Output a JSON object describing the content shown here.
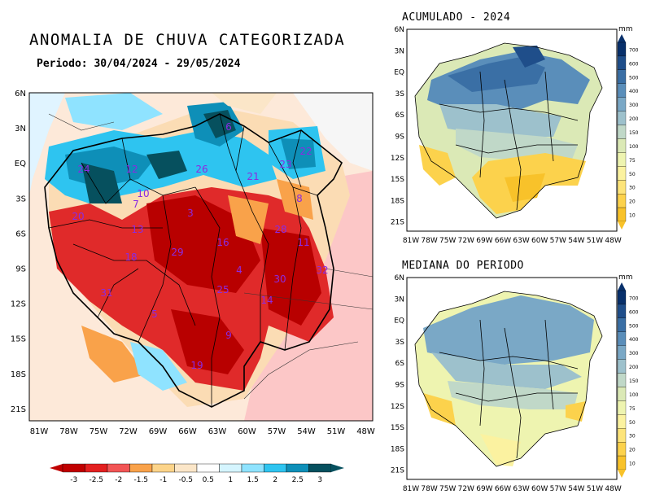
{
  "main_map": {
    "title": "ANOMALIA DE CHUVA CATEGORIZADA",
    "subtitle": "Periodo: 30/04/2024 - 29/05/2024",
    "lat_ticks": [
      "6N",
      "3N",
      "EQ",
      "3S",
      "6S",
      "9S",
      "12S",
      "15S",
      "18S",
      "21S"
    ],
    "lon_ticks": [
      "81W",
      "78W",
      "75W",
      "72W",
      "69W",
      "66W",
      "63W",
      "60W",
      "57W",
      "54W",
      "51W",
      "48W"
    ],
    "basin_numbers": [
      {
        "id": "6"
      },
      {
        "id": "22"
      },
      {
        "id": "24"
      },
      {
        "id": "12"
      },
      {
        "id": "26"
      },
      {
        "id": "21"
      },
      {
        "id": "23"
      },
      {
        "id": "10"
      },
      {
        "id": "8"
      },
      {
        "id": "20"
      },
      {
        "id": "7"
      },
      {
        "id": "3"
      },
      {
        "id": "13"
      },
      {
        "id": "28"
      },
      {
        "id": "16"
      },
      {
        "id": "11"
      },
      {
        "id": "18"
      },
      {
        "id": "29"
      },
      {
        "id": "4"
      },
      {
        "id": "32"
      },
      {
        "id": "30"
      },
      {
        "id": "31"
      },
      {
        "id": "25"
      },
      {
        "id": "14"
      },
      {
        "id": "5"
      },
      {
        "id": "9"
      },
      {
        "id": "19"
      }
    ]
  },
  "colorbar": {
    "labels": [
      "-3",
      "-2.5",
      "-2",
      "-1.5",
      "-1",
      "-0.5",
      "0.5",
      "1",
      "1.5",
      "2",
      "2.5",
      "3"
    ],
    "colors": [
      "#c00000",
      "#e32020",
      "#f25555",
      "#f9a24a",
      "#fcd48a",
      "#fbe6c8",
      "#ffffff",
      "#d5f5ff",
      "#8fe3ff",
      "#2ec4f0",
      "#0e8fb8",
      "#06505e"
    ]
  },
  "accum_map": {
    "title": "ACUMULADO - 2024",
    "unit": "mm",
    "lat_ticks": [
      "6N",
      "3N",
      "EQ",
      "3S",
      "6S",
      "9S",
      "12S",
      "15S",
      "18S",
      "21S"
    ],
    "lon_ticks": [
      "81W",
      "78W",
      "75W",
      "72W",
      "69W",
      "66W",
      "63W",
      "60W",
      "57W",
      "54W",
      "51W",
      "48W"
    ]
  },
  "median_map": {
    "title": "MEDIANA DO PERIODO",
    "unit": "mm",
    "lat_ticks": [
      "6N",
      "3N",
      "EQ",
      "3S",
      "6S",
      "9S",
      "12S",
      "15S",
      "18S",
      "21S"
    ],
    "lon_ticks": [
      "81W",
      "78W",
      "75W",
      "72W",
      "69W",
      "66W",
      "63W",
      "60W",
      "57W",
      "54W",
      "51W",
      "48W"
    ]
  },
  "precip_scale": {
    "labels": [
      "700",
      "600",
      "500",
      "400",
      "300",
      "200",
      "150",
      "100",
      "75",
      "50",
      "30",
      "20",
      "10"
    ],
    "colors": [
      "#08306b",
      "#1f4e8a",
      "#3a6fa5",
      "#5a8eba",
      "#7aa8c6",
      "#9dc1cc",
      "#c0d8c8",
      "#dbe9b6",
      "#eef4b0",
      "#fbf2a0",
      "#fde47a",
      "#fcd24c",
      "#f8c22a"
    ]
  }
}
